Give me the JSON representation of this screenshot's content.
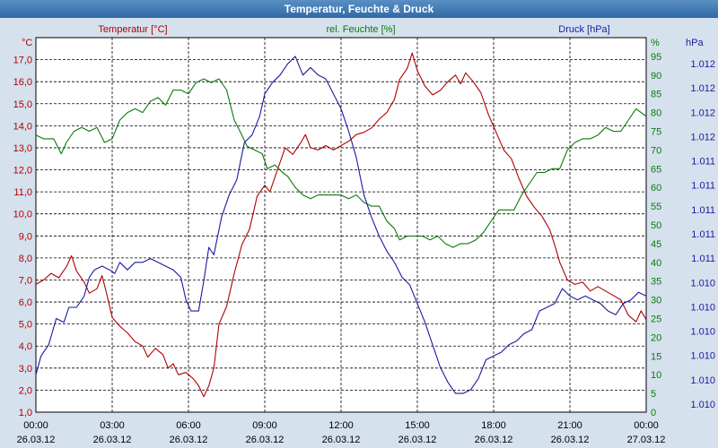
{
  "window": {
    "title": "Temperatur, Feuchte & Druck"
  },
  "colors": {
    "temperature": "#b00000",
    "humidity": "#0a7a0a",
    "pressure": "#1a1aa0",
    "background": "#d6e1ee",
    "plot": "#ffffff"
  },
  "chart_data": {
    "type": "line",
    "title": "Temperatur, Feuchte & Druck",
    "x_time_hours": [
      0,
      24
    ],
    "x_ticks": [
      {
        "time": "00:00",
        "date": "26.03.12"
      },
      {
        "time": "03:00",
        "date": "26.03.12"
      },
      {
        "time": "06:00",
        "date": "26.03.12"
      },
      {
        "time": "09:00",
        "date": "26.03.12"
      },
      {
        "time": "12:00",
        "date": "26.03.12"
      },
      {
        "time": "15:00",
        "date": "26.03.12"
      },
      {
        "time": "18:00",
        "date": "26.03.12"
      },
      {
        "time": "21:00",
        "date": "26.03.12"
      },
      {
        "time": "00:00",
        "date": "27.03.12"
      }
    ],
    "axes": {
      "temperature": {
        "unit": "°C",
        "label": "Temperatur [°C]",
        "range": [
          1.0,
          18.0
        ],
        "ticks": [
          "1,0",
          "2,0",
          "3,0",
          "4,0",
          "5,0",
          "6,0",
          "7,0",
          "8,0",
          "9,0",
          "10,0",
          "11,0",
          "12,0",
          "13,0",
          "14,0",
          "15,0",
          "16,0",
          "17,0"
        ]
      },
      "humidity": {
        "unit": "%",
        "label": "rel. Feuchte [%]",
        "range": [
          0,
          100
        ],
        "ticks": [
          "0",
          "5",
          "10",
          "15",
          "20",
          "25",
          "30",
          "35",
          "40",
          "45",
          "50",
          "55",
          "60",
          "65",
          "70",
          "75",
          "80",
          "85",
          "90",
          "95"
        ]
      },
      "pressure": {
        "unit": "hPa",
        "label": "Druck [hPa]",
        "ticks": [
          "1.010",
          "1.010",
          "1.010",
          "1.010",
          "1.010",
          "1.010",
          "1.011",
          "1.011",
          "1.011",
          "1.011",
          "1.011",
          "1.012",
          "1.012",
          "1.012",
          "1.012"
        ]
      }
    },
    "series": [
      {
        "name": "Temperatur",
        "axis": "temperature",
        "color": "#b00000",
        "points": [
          [
            0,
            6.8
          ],
          [
            0.3,
            7.0
          ],
          [
            0.6,
            7.3
          ],
          [
            0.9,
            7.1
          ],
          [
            1.2,
            7.6
          ],
          [
            1.4,
            8.1
          ],
          [
            1.6,
            7.4
          ],
          [
            1.9,
            6.9
          ],
          [
            2.1,
            6.4
          ],
          [
            2.4,
            6.6
          ],
          [
            2.6,
            7.2
          ],
          [
            2.8,
            6.3
          ],
          [
            3.0,
            5.3
          ],
          [
            3.3,
            4.9
          ],
          [
            3.6,
            4.6
          ],
          [
            3.9,
            4.2
          ],
          [
            4.2,
            4.0
          ],
          [
            4.4,
            3.5
          ],
          [
            4.7,
            3.9
          ],
          [
            5.0,
            3.6
          ],
          [
            5.2,
            3.0
          ],
          [
            5.4,
            3.2
          ],
          [
            5.6,
            2.7
          ],
          [
            5.9,
            2.8
          ],
          [
            6.2,
            2.5
          ],
          [
            6.4,
            2.2
          ],
          [
            6.6,
            1.7
          ],
          [
            6.8,
            2.2
          ],
          [
            7.0,
            3.0
          ],
          [
            7.2,
            5.0
          ],
          [
            7.5,
            5.8
          ],
          [
            7.8,
            7.3
          ],
          [
            8.1,
            8.6
          ],
          [
            8.4,
            9.3
          ],
          [
            8.7,
            10.8
          ],
          [
            9.0,
            11.3
          ],
          [
            9.2,
            11.0
          ],
          [
            9.5,
            12.0
          ],
          [
            9.8,
            13.0
          ],
          [
            10.1,
            12.7
          ],
          [
            10.4,
            13.2
          ],
          [
            10.6,
            13.6
          ],
          [
            10.8,
            13.0
          ],
          [
            11.1,
            12.9
          ],
          [
            11.4,
            13.1
          ],
          [
            11.7,
            12.9
          ],
          [
            12.0,
            13.1
          ],
          [
            12.3,
            13.3
          ],
          [
            12.6,
            13.6
          ],
          [
            12.9,
            13.7
          ],
          [
            13.2,
            13.9
          ],
          [
            13.5,
            14.3
          ],
          [
            13.8,
            14.6
          ],
          [
            14.1,
            15.2
          ],
          [
            14.3,
            16.1
          ],
          [
            14.6,
            16.6
          ],
          [
            14.8,
            17.3
          ],
          [
            15.0,
            16.5
          ],
          [
            15.3,
            15.8
          ],
          [
            15.6,
            15.4
          ],
          [
            15.9,
            15.6
          ],
          [
            16.2,
            16.0
          ],
          [
            16.5,
            16.3
          ],
          [
            16.7,
            15.9
          ],
          [
            16.9,
            16.4
          ],
          [
            17.2,
            16.0
          ],
          [
            17.5,
            15.5
          ],
          [
            17.8,
            14.5
          ],
          [
            18.1,
            13.7
          ],
          [
            18.4,
            12.9
          ],
          [
            18.7,
            12.5
          ],
          [
            19.0,
            11.6
          ],
          [
            19.3,
            10.8
          ],
          [
            19.6,
            10.3
          ],
          [
            19.9,
            9.9
          ],
          [
            20.2,
            9.3
          ],
          [
            20.4,
            8.6
          ],
          [
            20.6,
            7.8
          ],
          [
            20.9,
            7.0
          ],
          [
            21.2,
            6.8
          ],
          [
            21.5,
            6.9
          ],
          [
            21.8,
            6.5
          ],
          [
            22.1,
            6.7
          ],
          [
            22.4,
            6.5
          ],
          [
            22.7,
            6.3
          ],
          [
            23.0,
            6.1
          ],
          [
            23.3,
            5.4
          ],
          [
            23.6,
            5.1
          ],
          [
            23.8,
            5.6
          ],
          [
            24.0,
            5.2
          ]
        ]
      },
      {
        "name": "rel. Feuchte",
        "axis": "humidity",
        "color": "#0a7a0a",
        "points": [
          [
            0,
            74
          ],
          [
            0.3,
            73
          ],
          [
            0.7,
            73
          ],
          [
            1.0,
            69
          ],
          [
            1.2,
            72
          ],
          [
            1.5,
            75
          ],
          [
            1.8,
            76
          ],
          [
            2.1,
            75
          ],
          [
            2.4,
            76
          ],
          [
            2.7,
            72
          ],
          [
            3.0,
            73
          ],
          [
            3.3,
            78
          ],
          [
            3.6,
            80
          ],
          [
            3.9,
            81
          ],
          [
            4.2,
            80
          ],
          [
            4.5,
            83
          ],
          [
            4.8,
            84
          ],
          [
            5.1,
            82
          ],
          [
            5.4,
            86
          ],
          [
            5.7,
            86
          ],
          [
            6.0,
            85
          ],
          [
            6.3,
            88
          ],
          [
            6.6,
            89
          ],
          [
            6.9,
            88
          ],
          [
            7.2,
            89
          ],
          [
            7.5,
            86
          ],
          [
            7.8,
            78
          ],
          [
            8.1,
            74
          ],
          [
            8.3,
            71
          ],
          [
            8.6,
            70
          ],
          [
            8.9,
            69
          ],
          [
            9.1,
            65
          ],
          [
            9.4,
            66
          ],
          [
            9.7,
            64
          ],
          [
            9.9,
            63
          ],
          [
            10.2,
            60
          ],
          [
            10.5,
            58
          ],
          [
            10.8,
            57
          ],
          [
            11.1,
            58
          ],
          [
            11.4,
            58
          ],
          [
            11.7,
            58
          ],
          [
            12.0,
            58
          ],
          [
            12.3,
            57
          ],
          [
            12.6,
            58
          ],
          [
            12.9,
            56
          ],
          [
            13.2,
            55
          ],
          [
            13.5,
            55
          ],
          [
            13.8,
            51
          ],
          [
            14.1,
            49
          ],
          [
            14.3,
            46
          ],
          [
            14.6,
            47
          ],
          [
            14.9,
            47
          ],
          [
            15.2,
            47
          ],
          [
            15.5,
            46
          ],
          [
            15.8,
            47
          ],
          [
            16.1,
            45
          ],
          [
            16.4,
            44
          ],
          [
            16.7,
            45
          ],
          [
            17.0,
            45
          ],
          [
            17.3,
            46
          ],
          [
            17.6,
            48
          ],
          [
            17.9,
            51
          ],
          [
            18.2,
            54
          ],
          [
            18.5,
            54
          ],
          [
            18.8,
            54
          ],
          [
            19.1,
            58
          ],
          [
            19.4,
            61
          ],
          [
            19.7,
            64
          ],
          [
            20.0,
            64
          ],
          [
            20.3,
            65
          ],
          [
            20.6,
            65
          ],
          [
            20.9,
            70
          ],
          [
            21.2,
            72
          ],
          [
            21.5,
            73
          ],
          [
            21.8,
            73
          ],
          [
            22.1,
            74
          ],
          [
            22.4,
            76
          ],
          [
            22.7,
            75
          ],
          [
            23.0,
            75
          ],
          [
            23.3,
            78
          ],
          [
            23.6,
            81
          ],
          [
            23.8,
            80
          ],
          [
            24.0,
            79
          ]
        ]
      },
      {
        "name": "Druck",
        "axis": "pressure",
        "color": "#1a1aa0",
        "points": [
          [
            0,
            0.1
          ],
          [
            0.2,
            0.15
          ],
          [
            0.5,
            0.18
          ],
          [
            0.8,
            0.25
          ],
          [
            1.1,
            0.24
          ],
          [
            1.3,
            0.28
          ],
          [
            1.6,
            0.28
          ],
          [
            1.9,
            0.31
          ],
          [
            2.1,
            0.36
          ],
          [
            2.3,
            0.38
          ],
          [
            2.6,
            0.39
          ],
          [
            2.9,
            0.38
          ],
          [
            3.1,
            0.37
          ],
          [
            3.3,
            0.4
          ],
          [
            3.6,
            0.38
          ],
          [
            3.9,
            0.4
          ],
          [
            4.2,
            0.4
          ],
          [
            4.5,
            0.41
          ],
          [
            4.8,
            0.4
          ],
          [
            5.1,
            0.39
          ],
          [
            5.4,
            0.38
          ],
          [
            5.7,
            0.36
          ],
          [
            5.9,
            0.3
          ],
          [
            6.1,
            0.27
          ],
          [
            6.4,
            0.27
          ],
          [
            6.6,
            0.35
          ],
          [
            6.8,
            0.44
          ],
          [
            7.0,
            0.42
          ],
          [
            7.3,
            0.52
          ],
          [
            7.6,
            0.58
          ],
          [
            7.9,
            0.62
          ],
          [
            8.2,
            0.72
          ],
          [
            8.5,
            0.74
          ],
          [
            8.8,
            0.79
          ],
          [
            9.0,
            0.85
          ],
          [
            9.3,
            0.88
          ],
          [
            9.6,
            0.9
          ],
          [
            9.9,
            0.93
          ],
          [
            10.2,
            0.95
          ],
          [
            10.5,
            0.9
          ],
          [
            10.8,
            0.92
          ],
          [
            11.1,
            0.9
          ],
          [
            11.4,
            0.89
          ],
          [
            11.7,
            0.85
          ],
          [
            12.0,
            0.81
          ],
          [
            12.3,
            0.75
          ],
          [
            12.6,
            0.68
          ],
          [
            12.9,
            0.58
          ],
          [
            13.2,
            0.52
          ],
          [
            13.5,
            0.47
          ],
          [
            13.8,
            0.43
          ],
          [
            14.1,
            0.4
          ],
          [
            14.4,
            0.36
          ],
          [
            14.7,
            0.34
          ],
          [
            15.0,
            0.29
          ],
          [
            15.3,
            0.24
          ],
          [
            15.6,
            0.18
          ],
          [
            15.9,
            0.12
          ],
          [
            16.2,
            0.08
          ],
          [
            16.5,
            0.05
          ],
          [
            16.8,
            0.05
          ],
          [
            17.1,
            0.06
          ],
          [
            17.4,
            0.09
          ],
          [
            17.7,
            0.14
          ],
          [
            18.0,
            0.15
          ],
          [
            18.3,
            0.16
          ],
          [
            18.6,
            0.18
          ],
          [
            18.9,
            0.19
          ],
          [
            19.2,
            0.21
          ],
          [
            19.5,
            0.22
          ],
          [
            19.8,
            0.27
          ],
          [
            20.1,
            0.28
          ],
          [
            20.4,
            0.29
          ],
          [
            20.7,
            0.33
          ],
          [
            21.0,
            0.31
          ],
          [
            21.3,
            0.3
          ],
          [
            21.6,
            0.31
          ],
          [
            21.9,
            0.3
          ],
          [
            22.2,
            0.29
          ],
          [
            22.5,
            0.27
          ],
          [
            22.8,
            0.26
          ],
          [
            23.1,
            0.29
          ],
          [
            23.4,
            0.3
          ],
          [
            23.7,
            0.32
          ],
          [
            24.0,
            0.31
          ]
        ]
      }
    ]
  }
}
